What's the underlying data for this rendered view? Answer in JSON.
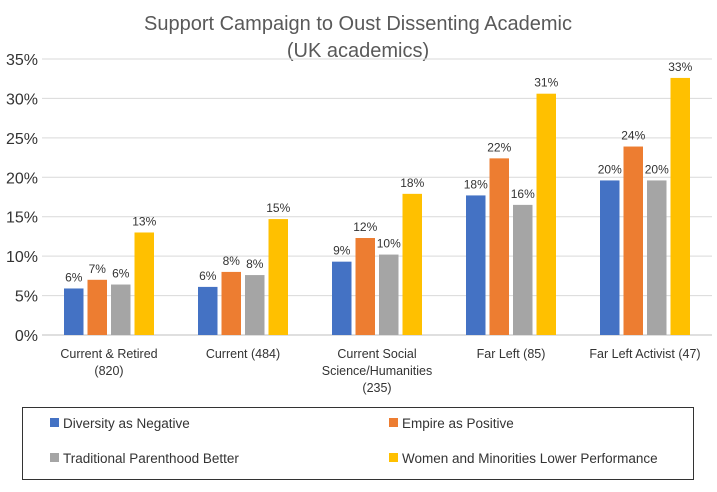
{
  "chart_data": {
    "type": "bar",
    "title": "Support Campaign to Oust Dissenting Academic",
    "subtitle": "(UK academics)",
    "categories": [
      [
        "Current & Retired",
        "(820)"
      ],
      [
        "Current (484)"
      ],
      [
        "Current Social",
        "Science/Humanities",
        "(235)"
      ],
      [
        "Far Left (85)"
      ],
      [
        "Far Left Activist (47)"
      ]
    ],
    "series": [
      {
        "name": "Diversity as Negative",
        "color": "#4472C4",
        "values": [
          6,
          6,
          9,
          18,
          20
        ],
        "labels": [
          "6%",
          "6%",
          "9%",
          "18%",
          "20%"
        ],
        "heights": [
          5.9,
          6.1,
          9.3,
          17.7,
          19.6
        ]
      },
      {
        "name": "Empire as Positive",
        "color": "#ED7D31",
        "values": [
          7,
          8,
          12,
          22,
          24
        ],
        "labels": [
          "7%",
          "8%",
          "12%",
          "22%",
          "24%"
        ],
        "heights": [
          7.0,
          8.0,
          12.3,
          22.4,
          23.9
        ]
      },
      {
        "name": "Traditional Parenthood Better",
        "color": "#A5A5A5",
        "values": [
          6,
          8,
          10,
          16,
          20
        ],
        "labels": [
          "6%",
          "8%",
          "10%",
          "16%",
          "20%"
        ],
        "heights": [
          6.4,
          7.6,
          10.2,
          16.5,
          19.6
        ]
      },
      {
        "name": "Women and Minorities Lower Performance",
        "color": "#FFC000",
        "values": [
          13,
          15,
          18,
          31,
          33
        ],
        "labels": [
          "13%",
          "15%",
          "18%",
          "31%",
          "33%"
        ],
        "heights": [
          13.0,
          14.7,
          17.9,
          30.6,
          32.6
        ]
      }
    ],
    "yticks": [
      "0%",
      "5%",
      "10%",
      "15%",
      "20%",
      "25%",
      "30%",
      "35%"
    ],
    "ylim": [
      0,
      35
    ],
    "ylabel": "",
    "xlabel": "",
    "grid": true,
    "legend": "bottom"
  }
}
